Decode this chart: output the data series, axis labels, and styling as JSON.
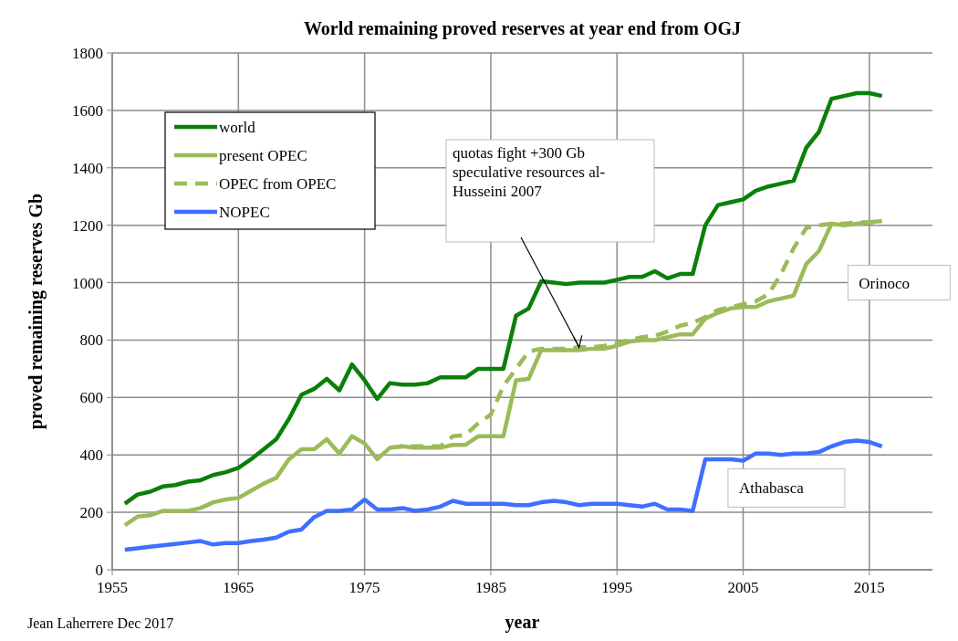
{
  "chart_data": {
    "type": "line",
    "title": "World remaining proved reserves at year end  from OGJ",
    "xlabel": "year",
    "ylabel": "proved remaining reserves Gb",
    "xlim": [
      1955,
      2020
    ],
    "xticks": [
      1955,
      1965,
      1975,
      1985,
      1995,
      2005,
      2015
    ],
    "ylim": [
      0,
      1800
    ],
    "yticks": [
      0,
      200,
      400,
      600,
      800,
      1000,
      1200,
      1400,
      1600,
      1800
    ],
    "grid": true,
    "legend": "top left",
    "marker": "none",
    "x": [
      1956,
      1957,
      1958,
      1959,
      1960,
      1961,
      1962,
      1963,
      1964,
      1965,
      1966,
      1967,
      1968,
      1969,
      1970,
      1971,
      1972,
      1973,
      1974,
      1975,
      1976,
      1977,
      1978,
      1979,
      1980,
      1981,
      1982,
      1983,
      1984,
      1985,
      1986,
      1987,
      1988,
      1989,
      1990,
      1991,
      1992,
      1993,
      1994,
      1995,
      1996,
      1997,
      1998,
      1999,
      2000,
      2001,
      2002,
      2003,
      2004,
      2005,
      2006,
      2007,
      2008,
      2009,
      2010,
      2011,
      2012,
      2013,
      2014,
      2015,
      2016
    ],
    "series": [
      {
        "name": "world",
        "color": "#0a800a",
        "line_style": "solid",
        "values": [
          230,
          262,
          272,
          290,
          295,
          307,
          312,
          330,
          340,
          355,
          385,
          420,
          455,
          525,
          610,
          630,
          665,
          625,
          715,
          660,
          595,
          650,
          645,
          645,
          650,
          670,
          670,
          670,
          700,
          700,
          700,
          885,
          910,
          1005,
          1000,
          995,
          1000,
          1000,
          1000,
          1010,
          1020,
          1020,
          1040,
          1015,
          1030,
          1030,
          1200,
          1270,
          1280,
          1290,
          1320,
          1335,
          1345,
          1355,
          1470,
          1525,
          1640,
          1650,
          1660,
          1660,
          1650
        ]
      },
      {
        "name": "present OPEC",
        "color": "#9bbb59",
        "line_style": "solid",
        "values": [
          155,
          185,
          190,
          205,
          205,
          205,
          215,
          235,
          245,
          250,
          275,
          300,
          320,
          385,
          420,
          420,
          455,
          405,
          465,
          440,
          385,
          425,
          430,
          425,
          425,
          425,
          435,
          435,
          465,
          465,
          465,
          660,
          665,
          765,
          765,
          765,
          765,
          770,
          770,
          780,
          795,
          800,
          800,
          810,
          820,
          820,
          875,
          895,
          910,
          915,
          915,
          935,
          945,
          955,
          1065,
          1110,
          1205,
          1200,
          1205,
          1210,
          1215
        ]
      },
      {
        "name": "OPEC from OPEC",
        "color": "#9bbb59",
        "line_style": "dashed",
        "x": [
          1977,
          1978,
          1979,
          1980,
          1981,
          1982,
          1983,
          1984,
          1985,
          1986,
          1987,
          1988,
          1989,
          1990,
          1991,
          1992,
          1993,
          1994,
          1995,
          1996,
          1997,
          1998,
          1999,
          2000,
          2001,
          2002,
          2003,
          2004,
          2005,
          2006,
          2007,
          2008,
          2009,
          2010,
          2011,
          2012,
          2013,
          2014,
          2015,
          2016
        ],
        "values": [
          425,
          430,
          430,
          430,
          430,
          465,
          470,
          510,
          540,
          640,
          700,
          760,
          770,
          770,
          770,
          775,
          775,
          780,
          790,
          800,
          810,
          815,
          830,
          850,
          860,
          880,
          905,
          915,
          925,
          935,
          960,
          1030,
          1120,
          1190,
          1200,
          1205,
          1205,
          1210,
          1210,
          1215
        ]
      },
      {
        "name": "NOPEC",
        "color": "#3f6fff",
        "line_style": "solid",
        "values": [
          70,
          75,
          80,
          85,
          90,
          95,
          100,
          88,
          93,
          93,
          100,
          105,
          112,
          133,
          140,
          183,
          205,
          205,
          210,
          245,
          210,
          210,
          215,
          205,
          210,
          220,
          240,
          230,
          230,
          230,
          230,
          225,
          225,
          235,
          240,
          235,
          225,
          230,
          230,
          230,
          225,
          220,
          230,
          210,
          210,
          205,
          385,
          385,
          385,
          380,
          405,
          405,
          400,
          405,
          405,
          410,
          430,
          445,
          450,
          445,
          430
        ]
      }
    ],
    "annotations": [
      "quotas fight +300 Gb speculative resources al-Husseini 2007",
      "Orinoco",
      "Athabasca",
      "Jean Laherrere Dec 2017"
    ]
  }
}
